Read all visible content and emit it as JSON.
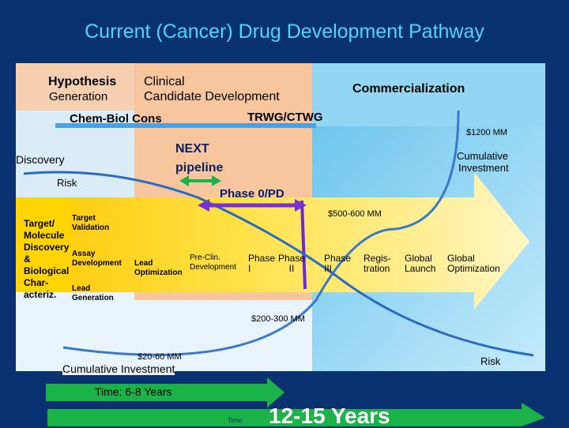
{
  "title": "Current (Cancer) Drug Development Pathway",
  "headers": {
    "hypothesis_line1": "Hypothesis",
    "hypothesis_line2": "Generation",
    "clinical_line1": "Clinical",
    "clinical_line2": "Candidate Development",
    "commercialization": "Commercialization"
  },
  "labels": {
    "chem_biol": "Chem-Biol Cons",
    "trwg": "TRWG/CTWG",
    "discovery": "Discovery",
    "risk_top": "Risk",
    "next_pipeline_line1": "NEXT",
    "next_pipeline_line2": "pipeline",
    "phase0": "Phase 0/PD",
    "cumulative_investment_top_line1": "Cumulative",
    "cumulative_investment_top_line2": "Investment",
    "cost_1200": "$1200 MM",
    "cost_500": "$500-600 MM",
    "cost_200": "$200-300 MM",
    "cost_20": "$20-60 MM",
    "cumulative_investment_bottom": "Cumulative Investment",
    "risk_bottom": "Risk"
  },
  "stages": {
    "target_discovery": [
      "Target/",
      "Molecule",
      "Discovery",
      "&",
      "Biological",
      "Char-",
      "acteriz."
    ],
    "target_validation": [
      "Target",
      "Validation"
    ],
    "assay_development": [
      "Assay",
      "Development"
    ],
    "lead_generation": [
      "Lead",
      "Generation"
    ],
    "lead_optimization": [
      "Lead",
      "Optimization"
    ],
    "preclin": [
      "Pre-Clin.",
      "Development"
    ],
    "phase1": [
      "Phase",
      "I"
    ],
    "phase2": [
      "Phase",
      "II"
    ],
    "phase3": [
      "Phase",
      "III"
    ],
    "registration": [
      "Regis-",
      "tration"
    ],
    "global_launch": [
      "Global",
      "Launch"
    ],
    "global_optimization": [
      "Global",
      "Optimization"
    ]
  },
  "timeline": {
    "time_short": "Time: 6-8 Years",
    "time_long_prefix": "Time:",
    "time_long": "12-15 Years"
  },
  "colors": {
    "background": "#0a3270",
    "title": "#4fd3ff",
    "panel": "#e9f3fb",
    "peach": "#f8c9a3",
    "sky": "#8fd6f4",
    "arrow": "#ffe84a",
    "green_arrow": "#1bb24a",
    "purple_arrow": "#7a2fd6",
    "curve": "#3a78c8"
  }
}
